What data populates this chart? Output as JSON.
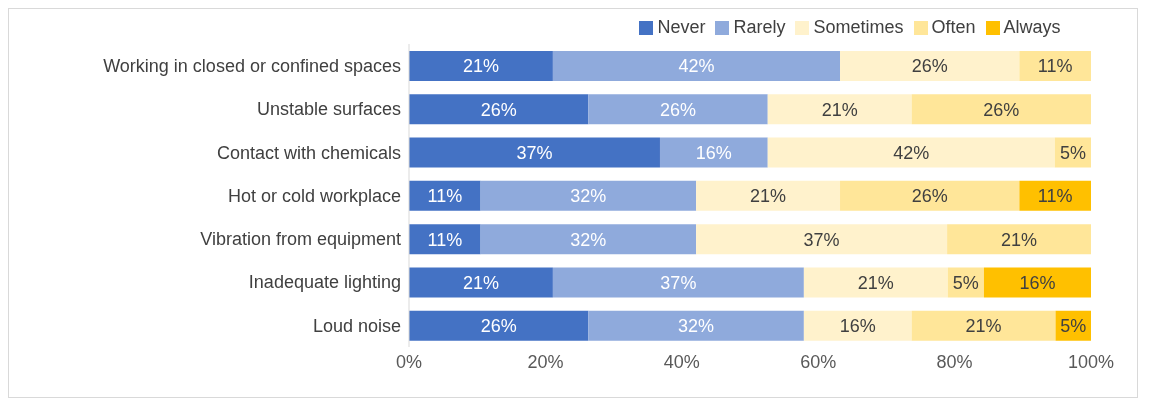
{
  "chart_data": {
    "type": "bar",
    "orientation": "horizontal",
    "stacked": true,
    "categories": [
      "Working in closed or confined spaces",
      "Unstable surfaces",
      "Contact with chemicals",
      "Hot or cold workplace",
      "Vibration from equipment",
      "Inadequate lighting",
      "Loud noise"
    ],
    "series": [
      {
        "name": "Never",
        "color": "#4472c4",
        "values": [
          21.1,
          26.3,
          36.8,
          10.5,
          10.5,
          21.1,
          26.3
        ],
        "value_labels": [
          "21%",
          "26%",
          "37%",
          "11%",
          "11%",
          "21%",
          "26%"
        ]
      },
      {
        "name": "Rarely",
        "color": "#8faadc",
        "values": [
          42.1,
          26.3,
          15.8,
          31.6,
          31.6,
          36.8,
          31.6
        ],
        "value_labels": [
          "42%",
          "26%",
          "16%",
          "32%",
          "32%",
          "37%",
          "32%"
        ]
      },
      {
        "name": "Sometimes",
        "color": "#fff2cc",
        "values": [
          26.3,
          21.1,
          42.1,
          21.1,
          36.8,
          21.1,
          15.8
        ],
        "value_labels": [
          "26%",
          "21%",
          "42%",
          "21%",
          "37%",
          "21%",
          "16%"
        ]
      },
      {
        "name": "Often",
        "color": "#ffe699",
        "values": [
          10.5,
          26.3,
          5.3,
          26.3,
          21.1,
          5.3,
          21.1
        ],
        "value_labels": [
          "11%",
          "26%",
          "5%",
          "26%",
          "21%",
          "5%",
          "21%"
        ]
      },
      {
        "name": "Always",
        "color": "#ffc000",
        "values": [
          null,
          null,
          null,
          10.5,
          null,
          15.7,
          5.2
        ],
        "value_labels": [
          null,
          null,
          null,
          "11%",
          null,
          "16%",
          "5%"
        ]
      }
    ],
    "xlim": [
      0,
      100
    ],
    "xticks": [
      {
        "value": 0,
        "label": "0%"
      },
      {
        "value": 20,
        "label": "20%"
      },
      {
        "value": 40,
        "label": "40%"
      },
      {
        "value": 60,
        "label": "60%"
      },
      {
        "value": 80,
        "label": "80%"
      },
      {
        "value": 100,
        "label": "100%"
      }
    ],
    "legend": "top"
  }
}
